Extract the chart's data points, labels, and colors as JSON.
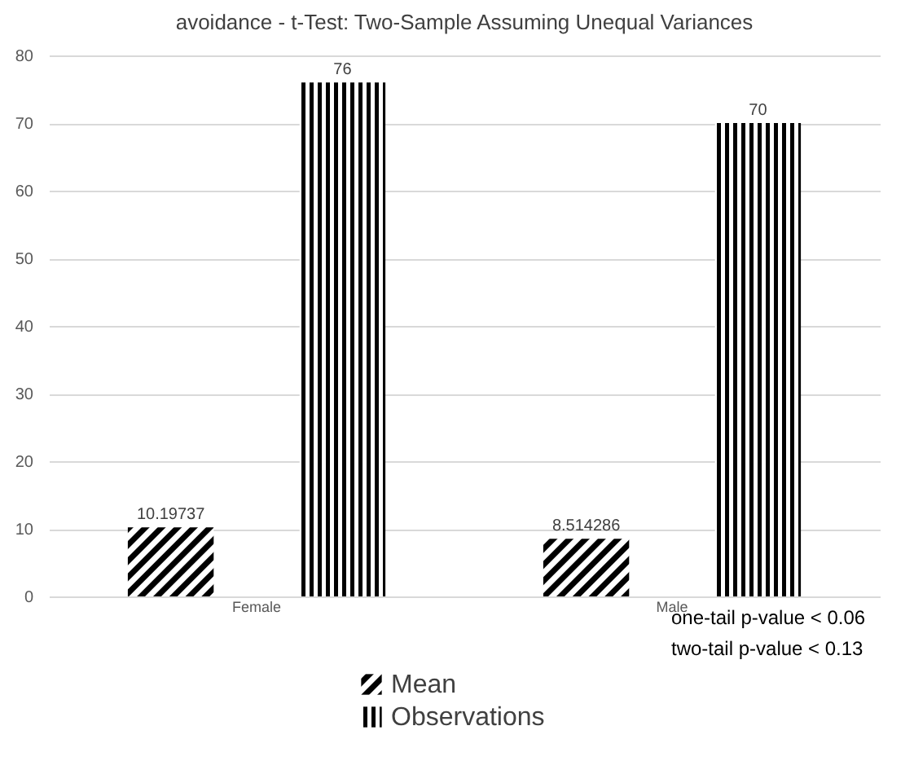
{
  "chart_data": {
    "type": "bar",
    "title": "avoidance - t-Test: Two-Sample Assuming Unequal Variances",
    "categories": [
      "Female",
      "Male"
    ],
    "series": [
      {
        "name": "Mean",
        "color": "#000000",
        "values": [
          10.19737,
          8.514286
        ]
      },
      {
        "name": "Observations",
        "color": "#000000",
        "values": [
          76,
          70
        ]
      }
    ],
    "ylim": [
      0,
      80
    ],
    "yticks": [
      0,
      10,
      20,
      30,
      40,
      50,
      60,
      70,
      80
    ],
    "grid": "y",
    "legend": "bottom",
    "data_labels": true,
    "annotations": [
      "one-tail p-value < 0.06",
      "two-tail p-value < 0.13"
    ]
  }
}
